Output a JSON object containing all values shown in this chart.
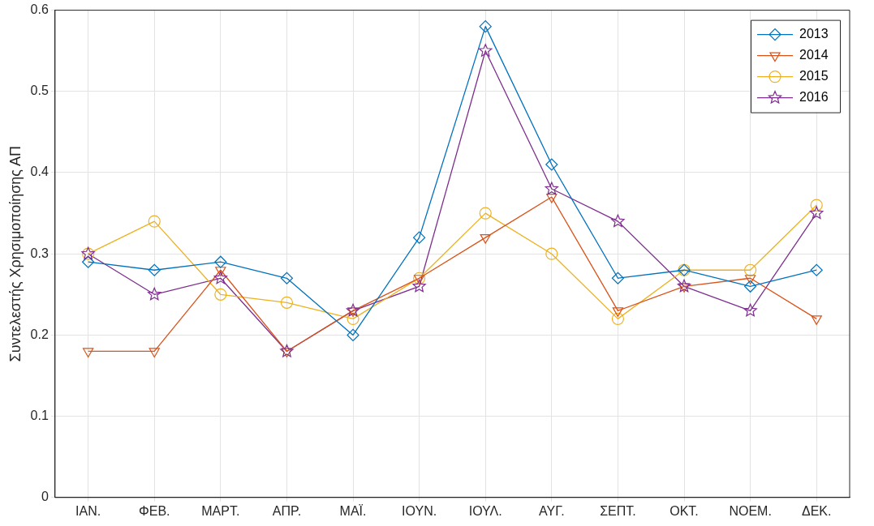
{
  "chart_data": {
    "type": "line",
    "ylabel": "Συντελεστής Χρησιμοποίησης ΑΠ",
    "categories": [
      "ΙΑΝ.",
      "ΦΕΒ.",
      "ΜΑΡΤ.",
      "ΑΠΡ.",
      "ΜΑΪ.",
      "ΙΟΥΝ.",
      "ΙΟΥΛ.",
      "ΑΥΓ.",
      "ΣΕΠΤ.",
      "ΟΚΤ.",
      "ΝΟΕΜ.",
      "ΔΕΚ."
    ],
    "series": [
      {
        "name": "2013",
        "color": "#0072bd",
        "marker": "diamond",
        "values": [
          0.29,
          0.28,
          0.29,
          0.27,
          0.2,
          0.32,
          0.58,
          0.41,
          0.27,
          0.28,
          0.26,
          0.28
        ]
      },
      {
        "name": "2014",
        "color": "#d95319",
        "marker": "triangle",
        "values": [
          0.18,
          0.18,
          0.28,
          0.18,
          0.23,
          0.27,
          0.32,
          0.37,
          0.23,
          0.26,
          0.27,
          0.22
        ]
      },
      {
        "name": "2015",
        "color": "#edb120",
        "marker": "circle",
        "values": [
          0.3,
          0.34,
          0.25,
          0.24,
          0.22,
          0.27,
          0.35,
          0.3,
          0.22,
          0.28,
          0.28,
          0.36
        ]
      },
      {
        "name": "2016",
        "color": "#7e2f8e",
        "marker": "star",
        "values": [
          0.3,
          0.25,
          0.27,
          0.18,
          0.23,
          0.26,
          0.55,
          0.38,
          0.34,
          0.26,
          0.23,
          0.35
        ]
      }
    ],
    "ylim": [
      0,
      0.6
    ],
    "yticks": [
      0,
      0.1,
      0.2,
      0.3,
      0.4,
      0.5,
      0.6
    ],
    "grid": true,
    "legend": "top right",
    "line_style": "solid"
  }
}
